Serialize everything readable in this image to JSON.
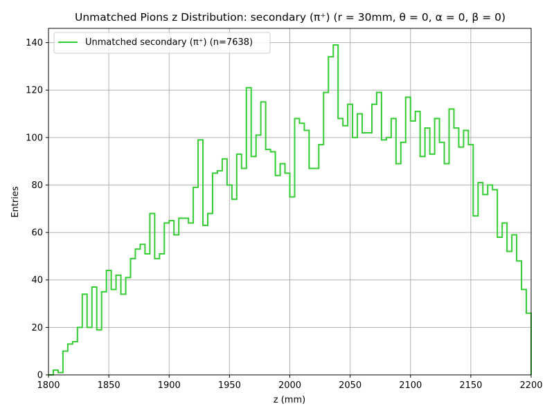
{
  "chart_data": {
    "type": "histogram-step",
    "title": "Unmatched Pions z Distribution: secondary (π⁺) (r = 30mm, θ = 0, α = 0, β = 0)",
    "xlabel": "z (mm)",
    "ylabel": "Entries",
    "xlim": [
      1800,
      2200
    ],
    "ylim": [
      0,
      146
    ],
    "grid": true,
    "legend_position": "top-left",
    "x_ticks": [
      1800,
      1850,
      1900,
      1950,
      2000,
      2050,
      2100,
      2150,
      2200
    ],
    "y_ticks": [
      0,
      20,
      40,
      60,
      80,
      100,
      120,
      140
    ],
    "bin_width": 4,
    "bin_edges_start": 1800,
    "series": [
      {
        "name": "Unmatched secondary (π⁺) (n=7638)",
        "color": "#33cc33",
        "values": [
          0,
          2,
          1,
          10,
          13,
          14,
          20,
          34,
          20,
          37,
          19,
          35,
          44,
          36,
          42,
          34,
          41,
          49,
          53,
          55,
          51,
          68,
          49,
          51,
          64,
          65,
          59,
          66,
          66,
          64,
          79,
          99,
          63,
          68,
          85,
          86,
          91,
          80,
          74,
          93,
          87,
          121,
          92,
          101,
          115,
          95,
          94,
          84,
          89,
          85,
          75,
          108,
          106,
          103,
          87,
          87,
          97,
          119,
          134,
          139,
          108,
          105,
          114,
          100,
          110,
          102,
          102,
          114,
          119,
          99,
          100,
          108,
          89,
          98,
          117,
          107,
          111,
          92,
          104,
          93,
          108,
          98,
          89,
          112,
          104,
          96,
          103,
          97,
          67,
          81,
          76,
          80,
          78,
          58,
          64,
          52,
          59,
          48,
          36,
          26
        ]
      }
    ]
  }
}
